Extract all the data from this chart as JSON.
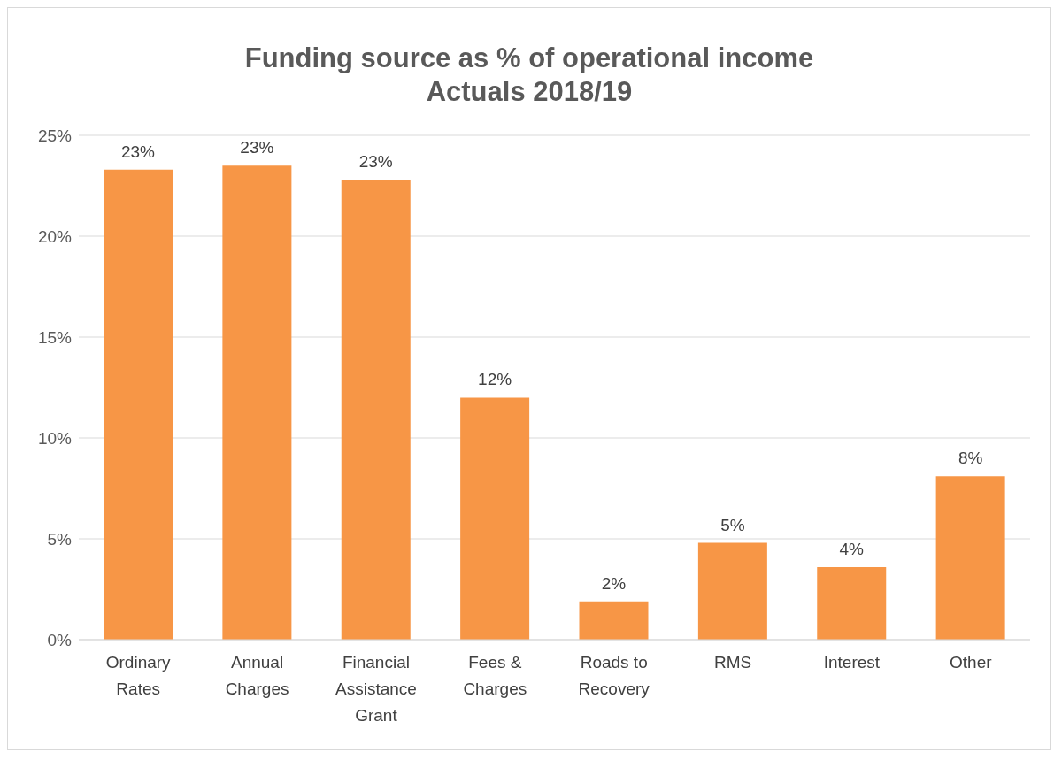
{
  "chart_data": {
    "type": "bar",
    "title": "Funding source as % of operational income",
    "subtitle": "Actuals 2018/19",
    "categories": [
      "Ordinary Rates",
      "Annual Charges",
      "Financial Assistance Grant",
      "Fees & Charges",
      "Roads to Recovery",
      "RMS",
      "Interest",
      "Other"
    ],
    "values": [
      23.3,
      23.5,
      22.8,
      12.0,
      1.9,
      4.8,
      3.6,
      8.1
    ],
    "value_labels": [
      "23%",
      "23%",
      "23%",
      "12%",
      "2%",
      "5%",
      "4%",
      "8%"
    ],
    "color": "#f79646",
    "ylim": [
      0,
      25
    ],
    "yticks": [
      {
        "value": 0,
        "label": "0%"
      },
      {
        "value": 5,
        "label": "5%"
      },
      {
        "value": 10,
        "label": "10%"
      },
      {
        "value": 15,
        "label": "15%"
      },
      {
        "value": 20,
        "label": "20%"
      },
      {
        "value": 25,
        "label": "25%"
      }
    ],
    "grid": "y"
  }
}
